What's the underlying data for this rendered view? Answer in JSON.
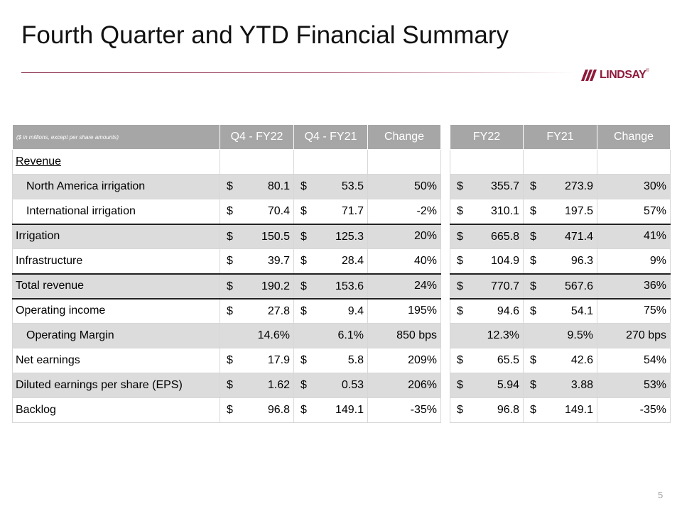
{
  "title": "Fourth Quarter and YTD Financial Summary",
  "logo": {
    "text": "LINDSAY",
    "tm": "®",
    "color": "#8e1a3c"
  },
  "page_number": "5",
  "quarter_table": {
    "note": "($ in millions, except per share amounts)",
    "headers": [
      "Q4 - FY22",
      "Q4 - FY21",
      "Change"
    ]
  },
  "year_table": {
    "headers": [
      "FY22",
      "FY21",
      "Change"
    ]
  },
  "rows": [
    {
      "label": "Revenue",
      "style": "underline",
      "shade": false,
      "thick": false,
      "q": null,
      "y": null
    },
    {
      "label": "North America irrigation",
      "style": "indent",
      "shade": true,
      "thick": false,
      "q": {
        "a": "80.1",
        "b": "53.5",
        "chg": "50%"
      },
      "y": {
        "a": "355.7",
        "b": "273.9",
        "chg": "30%"
      }
    },
    {
      "label": "International irrigation",
      "style": "indent",
      "shade": false,
      "thick": true,
      "q": {
        "a": "70.4",
        "b": "71.7",
        "chg": "-2%"
      },
      "y": {
        "a": "310.1",
        "b": "197.5",
        "chg": "57%"
      }
    },
    {
      "label": "Irrigation",
      "style": "plain",
      "shade": true,
      "thick": false,
      "q": {
        "a": "150.5",
        "b": "125.3",
        "chg": "20%"
      },
      "y": {
        "a": "665.8",
        "b": "471.4",
        "chg": "41%"
      }
    },
    {
      "label": "Infrastructure",
      "style": "plain",
      "shade": false,
      "thick": true,
      "q": {
        "a": "39.7",
        "b": "28.4",
        "chg": "40%"
      },
      "y": {
        "a": "104.9",
        "b": "96.3",
        "chg": "9%"
      }
    },
    {
      "label": "Total revenue",
      "style": "plain",
      "shade": true,
      "thick": true,
      "q": {
        "a": "190.2",
        "b": "153.6",
        "chg": "24%"
      },
      "y": {
        "a": "770.7",
        "b": "567.6",
        "chg": "36%"
      }
    },
    {
      "label": "Operating income",
      "style": "plain",
      "shade": false,
      "thick": false,
      "q": {
        "a": "27.8",
        "b": "9.4",
        "chg": "195%"
      },
      "y": {
        "a": "94.6",
        "b": "54.1",
        "chg": "75%"
      }
    },
    {
      "label": "Operating Margin",
      "style": "indent",
      "shade": true,
      "thick": false,
      "margin": true,
      "q": {
        "a": "14.6%",
        "b": "6.1%",
        "chg": "850 bps"
      },
      "y": {
        "a": "12.3%",
        "b": "9.5%",
        "chg": "270 bps"
      }
    },
    {
      "label": "Net earnings",
      "style": "plain",
      "shade": false,
      "thick": false,
      "q": {
        "a": "17.9",
        "b": "5.8",
        "chg": "209%"
      },
      "y": {
        "a": "65.5",
        "b": "42.6",
        "chg": "54%"
      }
    },
    {
      "label": "Diluted earnings per share (EPS)",
      "style": "plain",
      "shade": true,
      "thick": false,
      "q": {
        "a": "1.62",
        "b": "0.53",
        "chg": "206%"
      },
      "y": {
        "a": "5.94",
        "b": "3.88",
        "chg": "53%"
      }
    },
    {
      "label": "Backlog",
      "style": "plain",
      "shade": false,
      "thick": false,
      "q": {
        "a": "96.8",
        "b": "149.1",
        "chg": "-35%"
      },
      "y": {
        "a": "96.8",
        "b": "149.1",
        "chg": "-35%"
      }
    }
  ],
  "currency_symbol": "$"
}
